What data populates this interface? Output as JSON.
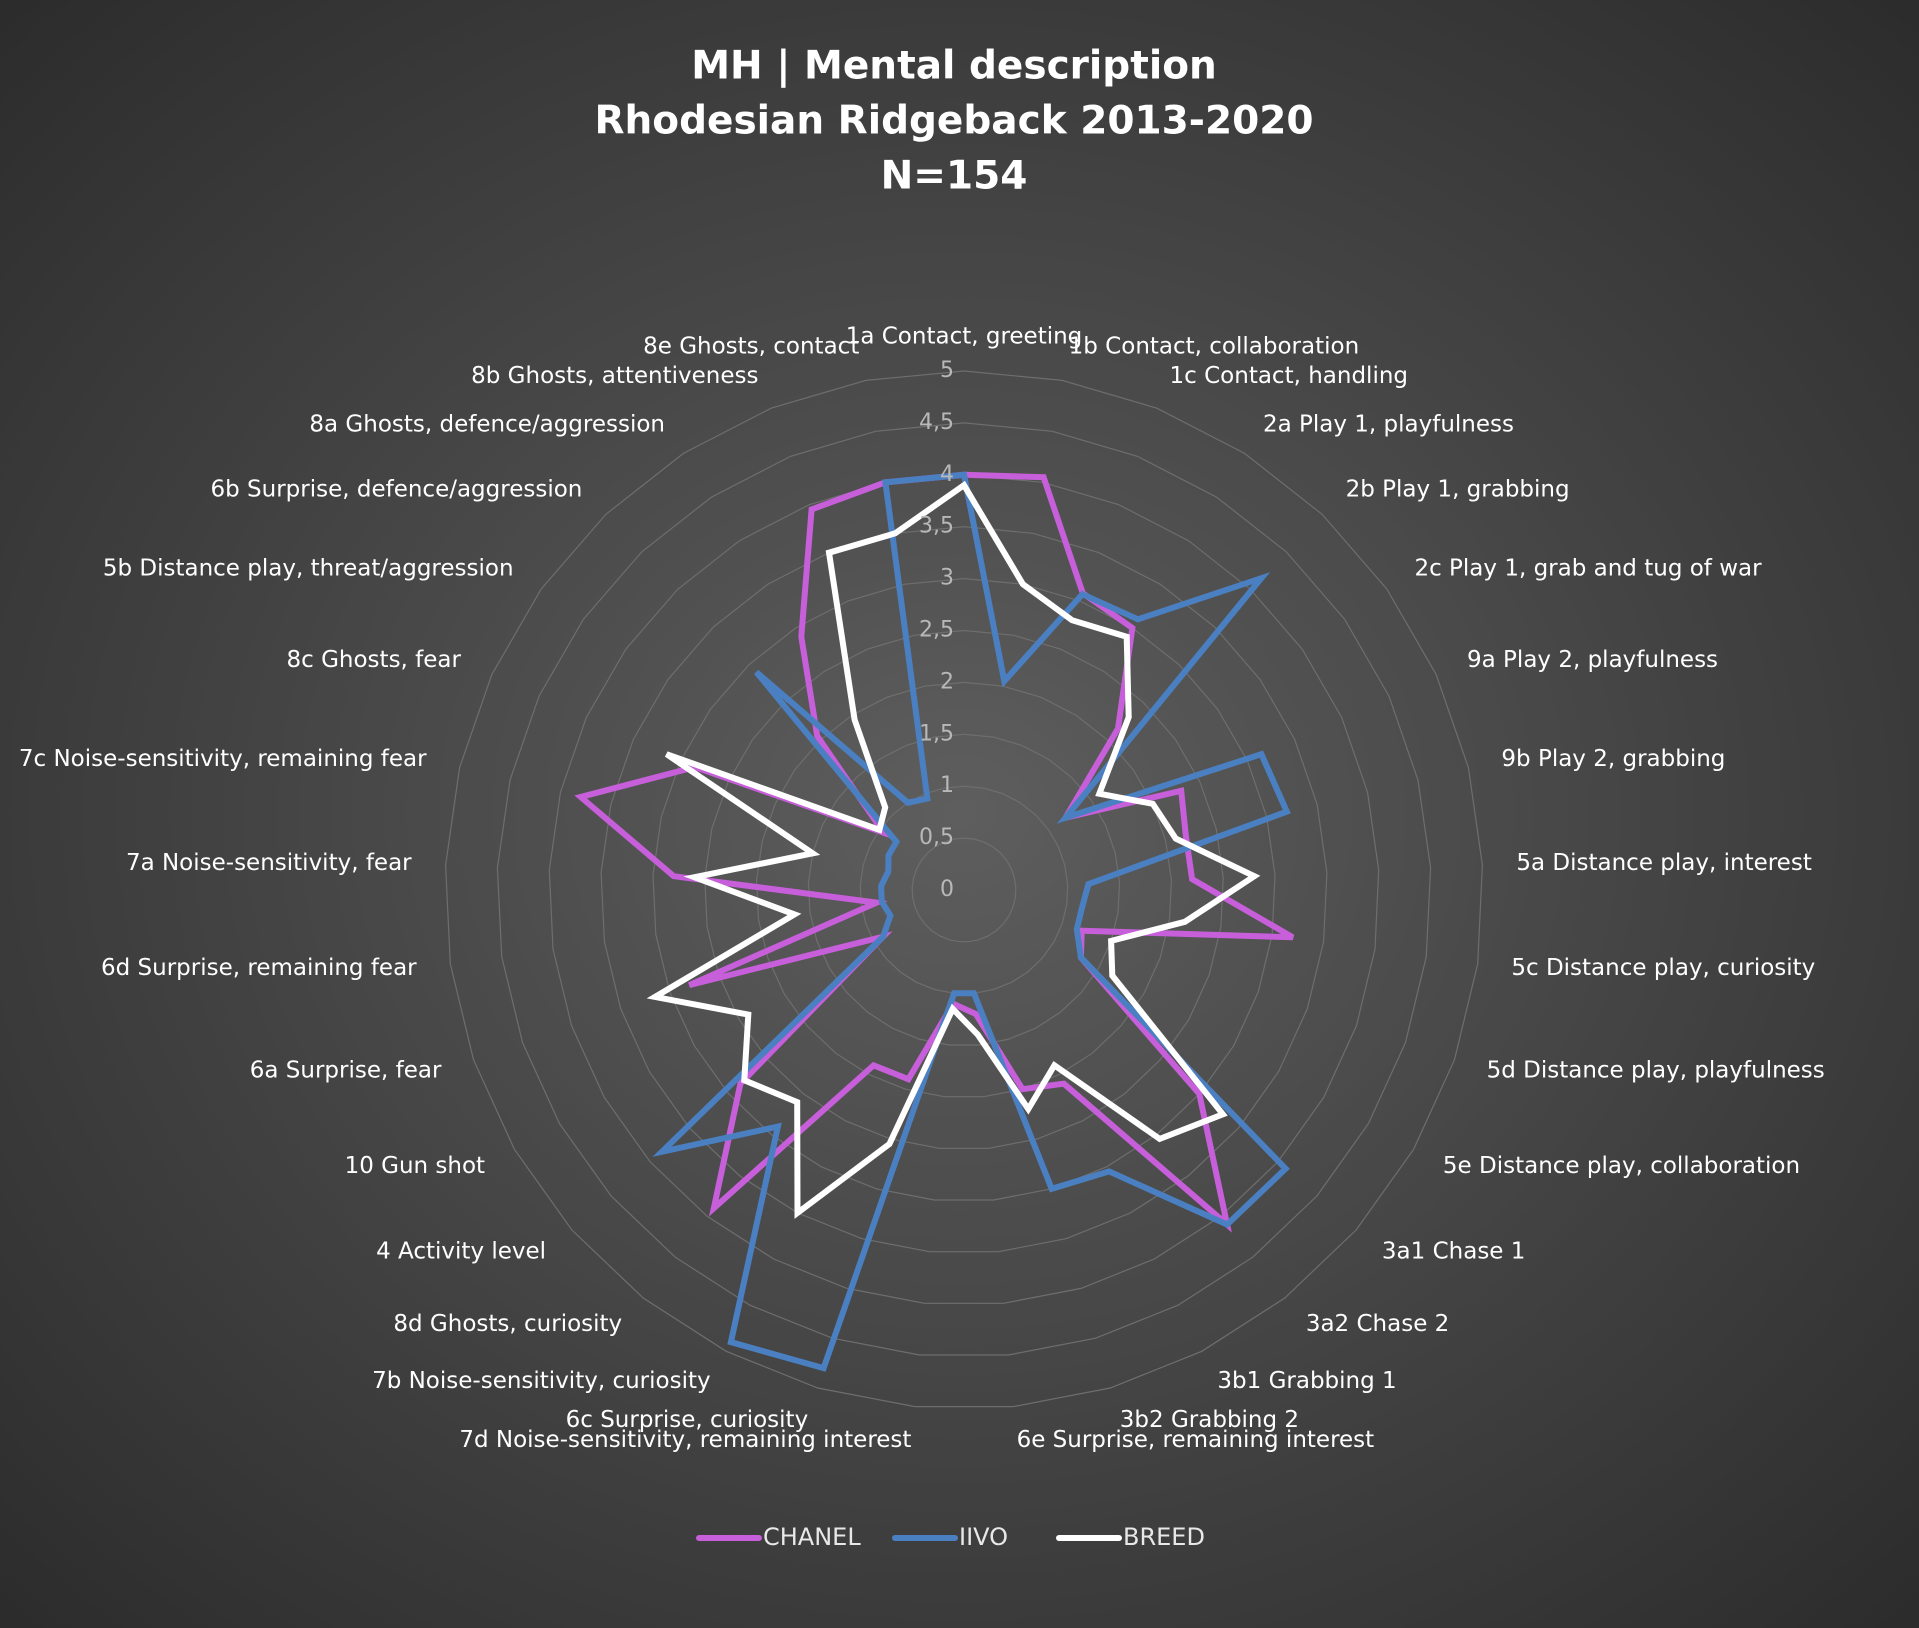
{
  "chart_data": {
    "type": "radar",
    "title": [
      "MH | Mental description",
      "Rhodesian Ridgeback 2013-2020",
      "N=154"
    ],
    "categories": [
      "1a Contact, greeting",
      "1b Contact, collaboration",
      "1c Contact, handling",
      "2a Play 1, playfulness",
      "2b Play 1, grabbing",
      "2c Play 1, grab and tug of war",
      "9a Play 2, playfulness",
      "9b Play 2, grabbing",
      "5a Distance play, interest",
      "5c Distance play, curiosity",
      "5d Distance play, playfulness",
      "5e Distance play, collaboration",
      "3a1 Chase 1",
      "3a2 Chase 2",
      "3b1 Grabbing 1",
      "3b2 Grabbing 2",
      "6e Surprise, remaining interest",
      "7d Noise-sensitivity, remaining interest",
      "6c Surprise, curiosity",
      "7b Noise-sensitivity, curiosity",
      "8d Ghosts, curiosity",
      "4 Activity level",
      "10 Gun shot",
      "6a Surprise, fear",
      "6d Surprise, remaining fear",
      "7a Noise-sensitivity, fear",
      "7c Noise-sensitivity, remaining fear",
      "8c Ghosts, fear",
      "5b Distance play, threat/aggression",
      "6b Surprise, defence/aggression",
      "8a Ghosts, defence/aggression",
      "8b Ghosts, attentiveness",
      "8e Ghosts, contact"
    ],
    "series": [
      {
        "name": "CHANEL",
        "color": "#c65fd9",
        "values": [
          4.0,
          4.05,
          3.08,
          3.0,
          2.15,
          1.2,
          2.3,
          2.2,
          2.2,
          3.2,
          1.2,
          1.3,
          3.0,
          4.1,
          2.1,
          2.0,
          1.2,
          1.1,
          1.9,
          1.9,
          3.9,
          2.85,
          0.9,
          2.8,
          0.85,
          2.8,
          3.8,
          2.85,
          0.95,
          2.05,
          2.9,
          3.95,
          4.0
        ]
      },
      {
        "name": "IIVO",
        "color": "#4a80c2",
        "values": [
          4.0,
          2.05,
          3.07,
          3.1,
          4.15,
          1.2,
          3.15,
          3.2,
          1.2,
          1.15,
          1.15,
          1.3,
          4.1,
          4.1,
          3.05,
          3.0,
          1.0,
          1.0,
          4.8,
          4.9,
          2.9,
          3.85,
          0.9,
          0.75,
          0.8,
          0.8,
          0.75,
          0.8,
          0.8,
          2.9,
          1.0,
          0.95,
          4.0
        ]
      },
      {
        "name": "BREED",
        "color": "#ffffff",
        "values": [
          3.9,
          3.0,
          2.8,
          2.9,
          2.3,
          1.6,
          2.0,
          2.1,
          2.8,
          2.15,
          1.5,
          1.65,
          3.3,
          3.05,
          1.9,
          2.2,
          1.4,
          1.15,
          2.55,
          3.5,
          2.6,
          2.8,
          2.4,
          3.15,
          1.65,
          2.6,
          1.5,
          3.15,
          1.0,
          1.1,
          1.95,
          3.5,
          3.5
        ]
      }
    ],
    "ylim": [
      0,
      5
    ],
    "yticks": [
      0,
      {
        "value": 0.5,
        "label": "0,5"
      },
      1,
      {
        "value": 1.5,
        "label": "1,5"
      },
      2,
      {
        "value": 2.5,
        "label": "2,5"
      },
      3,
      {
        "value": 3.5,
        "label": "3,5"
      },
      4,
      {
        "value": 4.5,
        "label": "4,5"
      },
      5
    ],
    "grid": true,
    "legend": "bottom"
  }
}
